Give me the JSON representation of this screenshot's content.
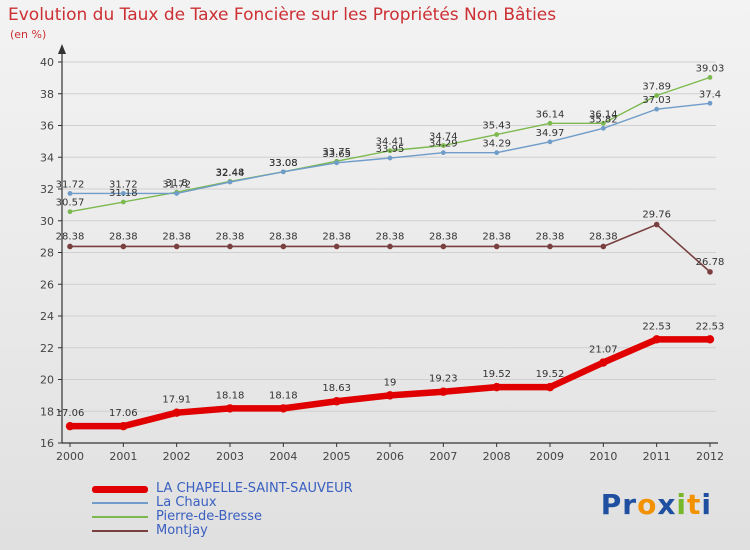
{
  "header": {
    "title": "Evolution du Taux de Taxe Foncière sur les Propriétés Non Bâties",
    "subtitle": "(en %)"
  },
  "chart_data": {
    "type": "line",
    "x": [
      2000,
      2001,
      2002,
      2003,
      2004,
      2005,
      2006,
      2007,
      2008,
      2009,
      2010,
      2011,
      2012
    ],
    "ylim": [
      16,
      40
    ],
    "yticks": [
      16,
      18,
      20,
      22,
      24,
      26,
      28,
      30,
      32,
      34,
      36,
      38,
      40
    ],
    "grid": true,
    "legend_position": "bottom-left",
    "series": [
      {
        "name": "LA CHAPELLE-SAINT-SAUVEUR",
        "color": "#e00000",
        "width": 6.5,
        "marker": 4.2,
        "label_offset": -10,
        "values": [
          17.06,
          17.06,
          17.91,
          18.18,
          18.18,
          18.63,
          19,
          19.23,
          19.52,
          19.52,
          21.07,
          22.53,
          22.53
        ]
      },
      {
        "name": "La Chaux",
        "color": "#6f9cc9",
        "width": 1.4,
        "marker": 2.4,
        "label_offset": -6,
        "values": [
          31.72,
          31.72,
          31.72,
          32.44,
          33.08,
          33.65,
          33.95,
          34.29,
          34.29,
          34.97,
          35.82,
          37.03,
          37.4
        ]
      },
      {
        "name": "Pierre-de-Bresse",
        "color": "#7cb94e",
        "width": 1.4,
        "marker": 2.4,
        "label_offset": -6,
        "values": [
          30.57,
          31.18,
          31.8,
          32.48,
          33.08,
          33.75,
          34.41,
          34.74,
          35.43,
          36.14,
          36.14,
          37.89,
          39.03
        ]
      },
      {
        "name": "Montjay",
        "color": "#7a4040",
        "width": 1.6,
        "marker": 2.8,
        "label_offset": -7,
        "values": [
          28.38,
          28.38,
          28.38,
          28.38,
          28.38,
          28.38,
          28.38,
          28.38,
          28.38,
          28.38,
          28.38,
          29.76,
          26.78
        ]
      }
    ]
  },
  "colors": {
    "title": "#cc2f33",
    "axis": "#333333",
    "grid": "#d0d0d0",
    "tick_text": "#444444",
    "value_label": "#333333",
    "legend_label": "#3a5fc0"
  },
  "logo": {
    "letters": [
      {
        "ch": "P",
        "color": "#1f4fa0"
      },
      {
        "ch": "r",
        "color": "#1f4fa0"
      },
      {
        "ch": "o",
        "color": "#f39200"
      },
      {
        "ch": "x",
        "color": "#1f4fa0"
      },
      {
        "ch": "i",
        "color": "#76b82a"
      },
      {
        "ch": "t",
        "color": "#f39200"
      },
      {
        "ch": "i",
        "color": "#1f4fa0"
      }
    ]
  }
}
